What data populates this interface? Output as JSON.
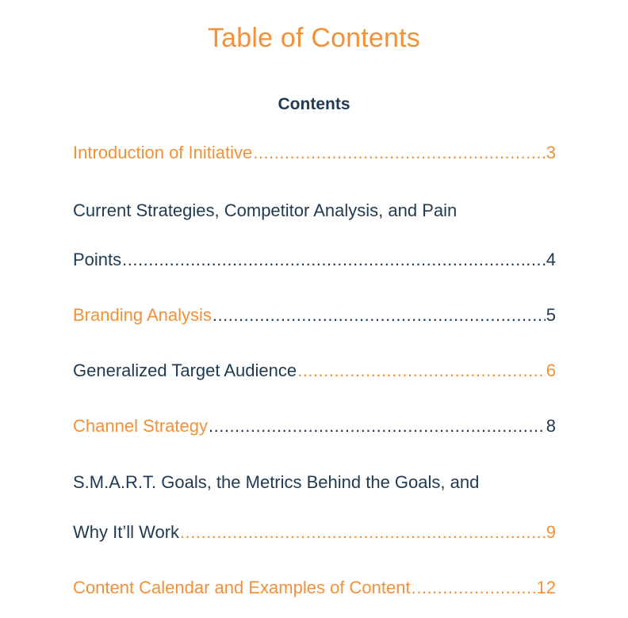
{
  "document": {
    "title": "Table of Contents",
    "heading": "Contents",
    "colors": {
      "accent": "#f39038",
      "text": "#1f3a52"
    },
    "entries": [
      {
        "lines": [
          "Introduction of Initiative"
        ],
        "page": "3",
        "title_color": "accent",
        "leader_color": "accent"
      },
      {
        "lines": [
          "Current Strategies, Competitor Analysis, and Pain",
          "Points"
        ],
        "page": "4",
        "title_color": "text",
        "leader_color": "text"
      },
      {
        "lines": [
          "Branding Analysis"
        ],
        "page": "5",
        "title_color": "accent",
        "leader_color": "text"
      },
      {
        "lines": [
          "Generalized Target Audience"
        ],
        "page": "6",
        "title_color": "text",
        "leader_color": "accent"
      },
      {
        "lines": [
          "Channel Strategy"
        ],
        "page": "8",
        "title_color": "accent",
        "leader_color": "text"
      },
      {
        "lines": [
          "S.M.A.R.T. Goals, the Metrics Behind the Goals, and",
          "Why It’ll Work"
        ],
        "page": "9",
        "title_color": "text",
        "leader_color": "accent"
      },
      {
        "lines": [
          "Content Calendar and Examples of Content"
        ],
        "page": "12",
        "title_color": "accent",
        "leader_color": "accent"
      }
    ]
  }
}
